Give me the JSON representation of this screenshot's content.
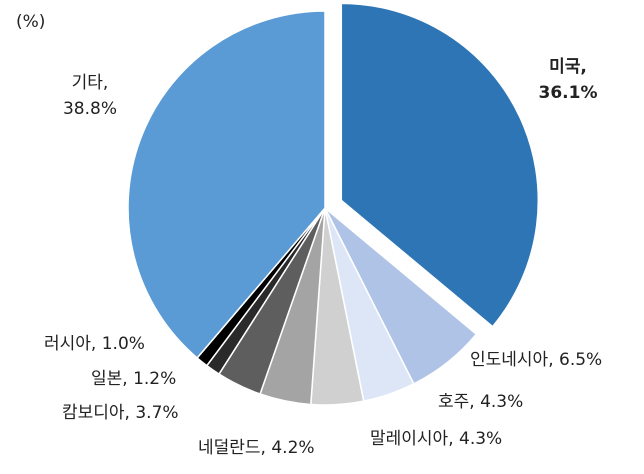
{
  "chart_data": {
    "type": "pie",
    "title": "",
    "unit_label": "(%)",
    "start": "12 o'clock",
    "direction": "clockwise",
    "slices": [
      {
        "label": "미국",
        "value": 36.1,
        "value_text": "36.1%",
        "color": "#2e75b6",
        "exploded": true,
        "emphasis": "bold"
      },
      {
        "label": "인도네시아",
        "value": 6.5,
        "value_text": "6.5%",
        "color": "#aec3e6"
      },
      {
        "label": "호주",
        "value": 4.3,
        "value_text": "4.3%",
        "color": "#dde6f7"
      },
      {
        "label": "말레이시아",
        "value": 4.3,
        "value_text": "4.3%",
        "color": "#d0d0d0"
      },
      {
        "label": "네덜란드",
        "value": 4.2,
        "value_text": "4.2%",
        "color": "#a4a4a4"
      },
      {
        "label": "캄보디아",
        "value": 3.7,
        "value_text": "3.7%",
        "color": "#5e5e5e"
      },
      {
        "label": "일본",
        "value": 1.2,
        "value_text": "1.2%",
        "color": "#2a2a2a"
      },
      {
        "label": "러시아",
        "value": 1.0,
        "value_text": "1.0%",
        "color": "#000000"
      },
      {
        "label": "기타",
        "value": 38.8,
        "value_text": "38.8%",
        "color": "#5b9bd5"
      }
    ]
  }
}
